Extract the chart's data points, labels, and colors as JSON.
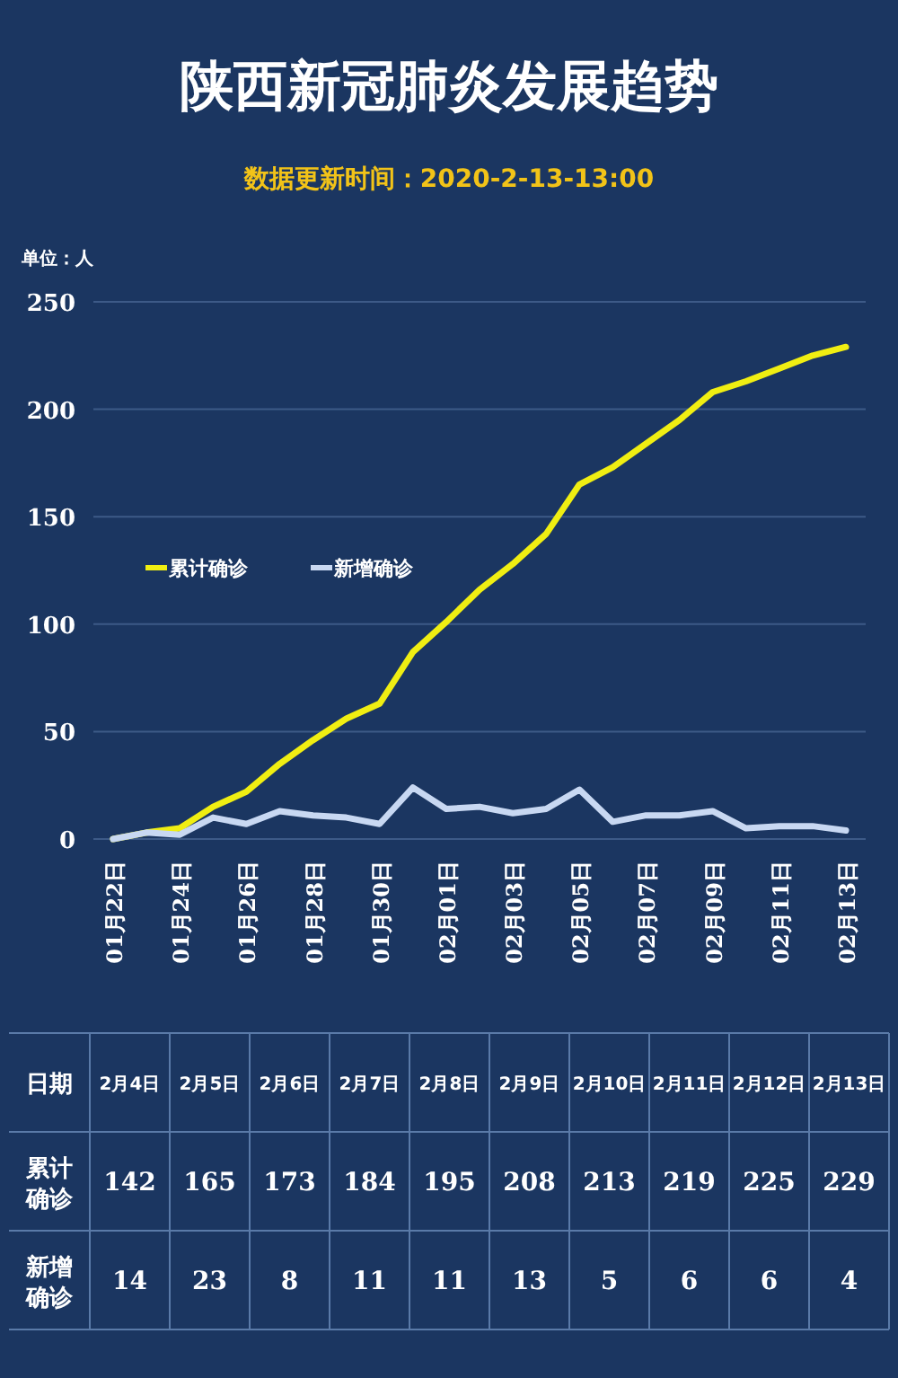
{
  "chart_data": [
    {
      "type": "line",
      "title": "陕西新冠肺炎发展趋势",
      "subtitle": "数据更新时间：2020-2-13-13:00",
      "ylabel": "单位：人",
      "categories": [
        "01月22日",
        null,
        "01月24日",
        null,
        "01月26日",
        null,
        "01月28日",
        null,
        "01月30日",
        null,
        "02月01日",
        null,
        "02月03日",
        null,
        "02月05日",
        null,
        "02月07日",
        null,
        "02月09日",
        null,
        "02月11日",
        null,
        "02月13日"
      ],
      "series": [
        {
          "name": "累计确诊",
          "color": "#f0ee12",
          "values": [
            0,
            3,
            5,
            15,
            22,
            35,
            46,
            56,
            63,
            87,
            101,
            116,
            128,
            142,
            165,
            173,
            184,
            195,
            208,
            213,
            219,
            225,
            229
          ]
        },
        {
          "name": "新增确诊",
          "color": "#c8d8f2",
          "values": [
            0,
            3,
            2,
            10,
            7,
            13,
            11,
            10,
            7,
            24,
            14,
            15,
            12,
            14,
            23,
            8,
            11,
            11,
            13,
            5,
            6,
            6,
            4
          ]
        }
      ],
      "ylim": [
        0,
        250
      ],
      "yticks": [
        0,
        50,
        100,
        150,
        200,
        250
      ],
      "grid": "y",
      "legend": "top left",
      "marker": "none",
      "line_style": "solid"
    },
    {
      "type": "other",
      "xlabel": "日期",
      "categories": [
        "2月4日",
        "2月5日",
        "2月6日",
        "2月7日",
        "2月8日",
        "2月9日",
        "2月10日",
        "2月11日",
        "2月12日",
        "2月13日"
      ],
      "series": [
        {
          "name": "累计确诊",
          "values": [
            142,
            165,
            173,
            184,
            195,
            208,
            213,
            219,
            225,
            229
          ]
        },
        {
          "name": "新增确诊",
          "values": [
            14,
            23,
            8,
            11,
            11,
            13,
            5,
            6,
            6,
            4
          ]
        }
      ],
      "data_labels": true
    }
  ]
}
